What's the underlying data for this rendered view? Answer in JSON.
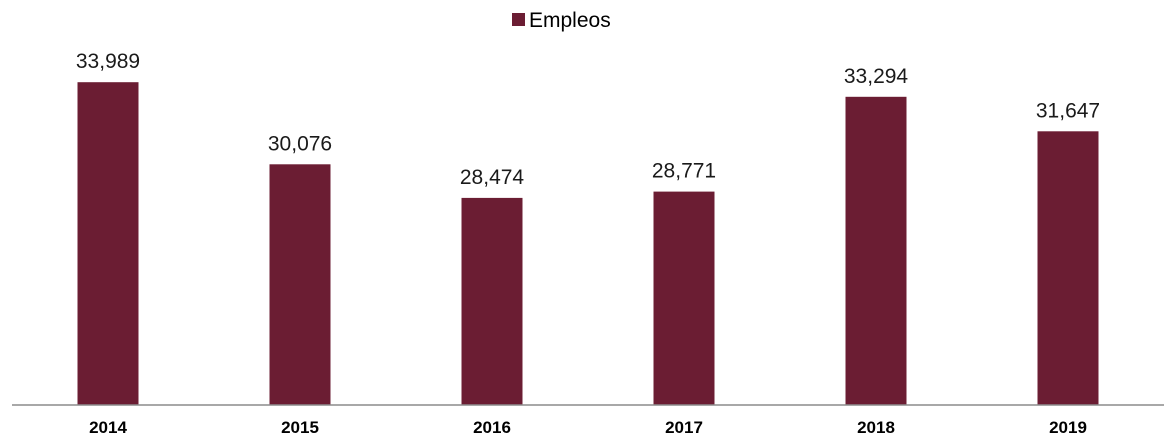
{
  "chart_data": {
    "type": "bar",
    "title": "",
    "xlabel": "",
    "ylabel": "",
    "categories": [
      "2014",
      "2015",
      "2016",
      "2017",
      "2018",
      "2019"
    ],
    "series": [
      {
        "name": "Empleos",
        "color": "#6b1d33",
        "values": [
          33989,
          30076,
          28474,
          28771,
          33294,
          31647
        ],
        "labels": [
          "33,989",
          "30,076",
          "28,474",
          "28,771",
          "33,294",
          "31,647"
        ]
      }
    ],
    "ylim": [
      18600,
      36000
    ],
    "legend_position": "top-center",
    "grid": false
  }
}
